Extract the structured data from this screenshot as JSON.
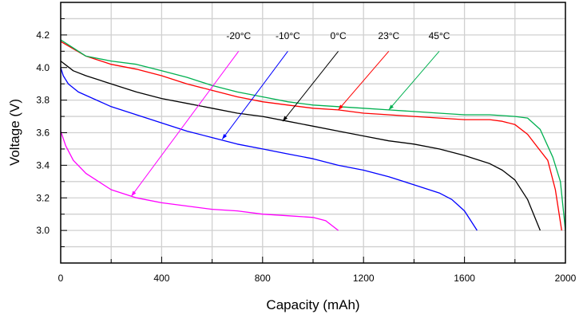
{
  "chart_data": {
    "type": "line",
    "title": "",
    "xlabel": "Capacity (mAh)",
    "ylabel": "Voltage (V)",
    "xlim": [
      0,
      2000
    ],
    "ylim": [
      2.8,
      4.4
    ],
    "xticks": [
      0,
      400,
      800,
      1200,
      1600,
      2000
    ],
    "xtick_labels": [
      "0",
      "400",
      "800",
      "1200",
      "1600",
      "2000"
    ],
    "yticks": [
      3.0,
      3.2,
      3.4,
      3.6,
      3.8,
      4.0,
      4.2
    ],
    "ytick_labels": [
      "3.0",
      "3.2",
      "3.4",
      "3.6",
      "3.8",
      "4.0",
      "4.2"
    ],
    "grid": true,
    "legend": "inline labels with arrows, top",
    "series": [
      {
        "name": "-20°C",
        "color": "#ff00ff",
        "x": [
          0,
          20,
          50,
          100,
          200,
          300,
          400,
          500,
          600,
          700,
          800,
          900,
          1000,
          1050,
          1100
        ],
        "y": [
          3.61,
          3.52,
          3.43,
          3.35,
          3.25,
          3.2,
          3.17,
          3.15,
          3.13,
          3.12,
          3.1,
          3.09,
          3.08,
          3.06,
          3.0
        ],
        "arrow": {
          "from": [
            705,
            4.1
          ],
          "to": [
            280,
            3.21
          ]
        }
      },
      {
        "name": "-10°C",
        "color": "#0000ff",
        "x": [
          0,
          10,
          30,
          70,
          200,
          300,
          400,
          500,
          600,
          700,
          800,
          900,
          1000,
          1100,
          1200,
          1300,
          1400,
          1500,
          1550,
          1600,
          1650
        ],
        "y": [
          4.0,
          3.95,
          3.9,
          3.85,
          3.76,
          3.71,
          3.66,
          3.61,
          3.57,
          3.53,
          3.5,
          3.47,
          3.44,
          3.4,
          3.37,
          3.33,
          3.28,
          3.23,
          3.19,
          3.12,
          3.0
        ],
        "arrow": {
          "from": [
            900,
            4.1
          ],
          "to": [
            640,
            3.56
          ]
        }
      },
      {
        "name": "0°C",
        "color": "#000000",
        "x": [
          0,
          50,
          100,
          200,
          300,
          400,
          500,
          600,
          700,
          800,
          900,
          1000,
          1100,
          1200,
          1300,
          1400,
          1500,
          1600,
          1700,
          1750,
          1800,
          1850,
          1900
        ],
        "y": [
          4.04,
          3.98,
          3.95,
          3.9,
          3.85,
          3.81,
          3.78,
          3.75,
          3.72,
          3.7,
          3.67,
          3.64,
          3.61,
          3.58,
          3.55,
          3.53,
          3.5,
          3.46,
          3.41,
          3.37,
          3.31,
          3.19,
          3.0
        ],
        "arrow": {
          "from": [
            1100,
            4.1
          ],
          "to": [
            880,
            3.67
          ]
        }
      },
      {
        "name": "23°C",
        "color": "#ff0000",
        "x": [
          0,
          100,
          200,
          300,
          400,
          500,
          600,
          700,
          800,
          900,
          1000,
          1100,
          1200,
          1300,
          1400,
          1500,
          1600,
          1700,
          1750,
          1800,
          1850,
          1900,
          1930,
          1960,
          1985
        ],
        "y": [
          4.16,
          4.07,
          4.02,
          3.99,
          3.95,
          3.9,
          3.86,
          3.82,
          3.79,
          3.77,
          3.75,
          3.74,
          3.72,
          3.71,
          3.7,
          3.69,
          3.68,
          3.68,
          3.67,
          3.65,
          3.59,
          3.49,
          3.43,
          3.25,
          3.0
        ],
        "arrow": {
          "from": [
            1300,
            4.1
          ],
          "to": [
            1100,
            3.74
          ]
        }
      },
      {
        "name": "45°C",
        "color": "#00b050",
        "x": [
          0,
          50,
          100,
          200,
          300,
          400,
          500,
          600,
          700,
          800,
          900,
          1000,
          1100,
          1200,
          1300,
          1400,
          1500,
          1600,
          1700,
          1800,
          1850,
          1900,
          1950,
          1980,
          2000
        ],
        "y": [
          4.17,
          4.12,
          4.07,
          4.04,
          4.02,
          3.98,
          3.94,
          3.89,
          3.85,
          3.82,
          3.79,
          3.77,
          3.76,
          3.75,
          3.74,
          3.73,
          3.72,
          3.71,
          3.71,
          3.7,
          3.69,
          3.62,
          3.45,
          3.3,
          3.0
        ],
        "arrow": {
          "from": [
            1500,
            4.1
          ],
          "to": [
            1300,
            3.74
          ]
        }
      }
    ]
  }
}
